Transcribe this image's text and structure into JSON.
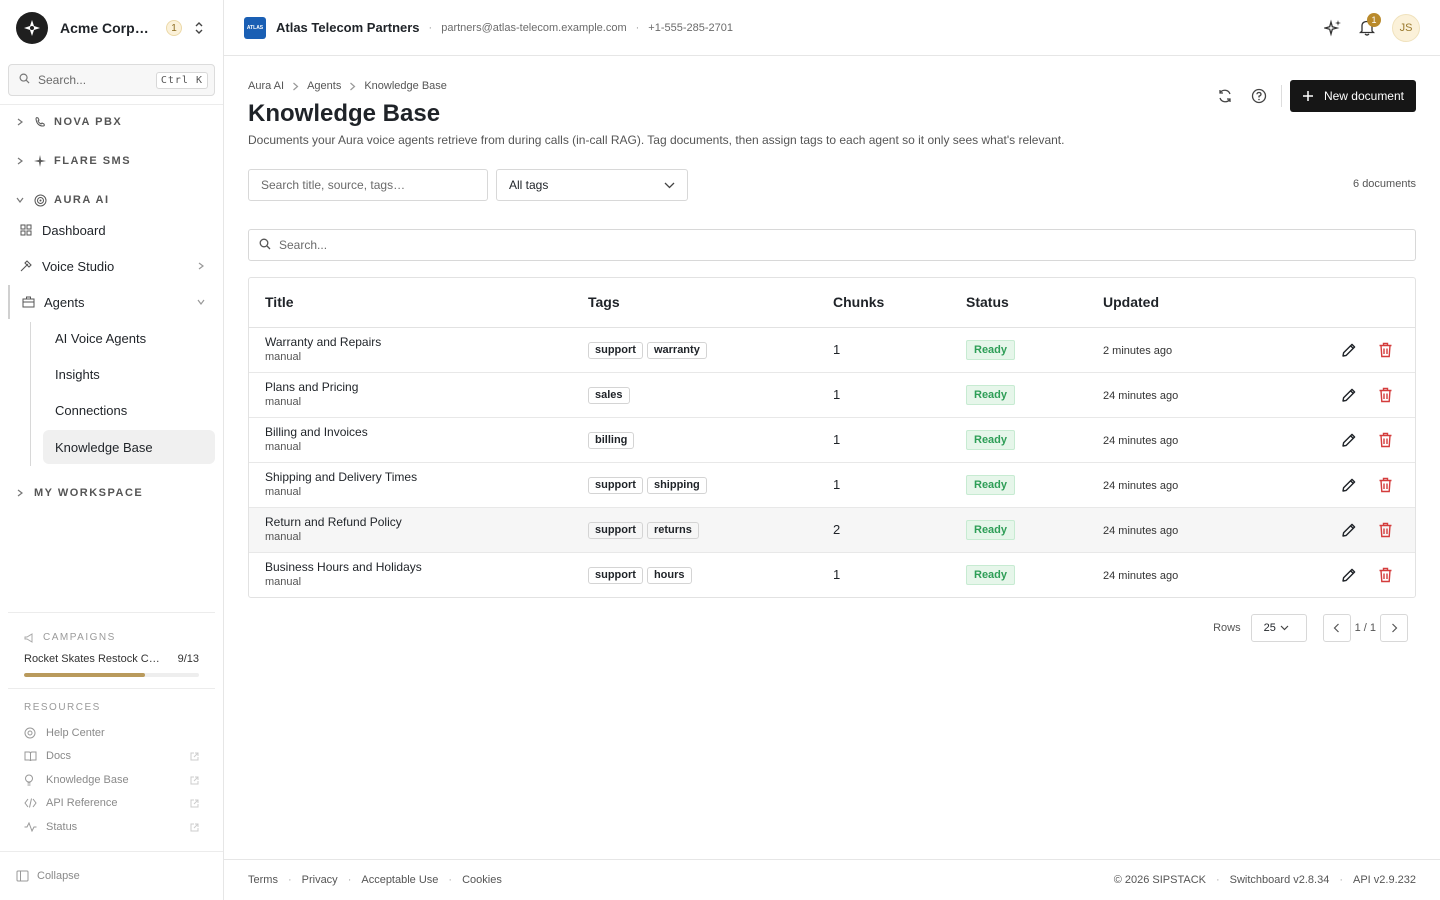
{
  "sidebar": {
    "org_name": "Acme Corporation",
    "org_badge": "1",
    "search_placeholder": "Search...",
    "search_shortcut": "Ctrl K",
    "groups": {
      "nova": "NOVA PBX",
      "flare": "FLARE SMS",
      "aura": "AURA AI",
      "workspace": "MY WORKSPACE"
    },
    "nav": {
      "dashboard": "Dashboard",
      "voice_studio": "Voice Studio",
      "agents": "Agents"
    },
    "subnav": [
      "AI Voice Agents",
      "Insights",
      "Connections",
      "Knowledge Base"
    ],
    "campaigns_label": "CAMPAIGNS",
    "campaign": {
      "name": "Rocket Skates Restock Campaign",
      "count": "9/13",
      "progress": 0.69
    },
    "resources_label": "RESOURCES",
    "resources": [
      "Help Center",
      "Docs",
      "Knowledge Base",
      "API Reference",
      "Status"
    ],
    "collapse": "Collapse"
  },
  "topbar": {
    "company": "Atlas Telecom Partners",
    "logo_text": "ATLAS",
    "email": "partners@atlas-telecom.example.com",
    "phone": "+1-555-285-2701",
    "notif_count": "1",
    "avatar": "JS"
  },
  "page": {
    "breadcrumb": [
      "Aura AI",
      "Agents",
      "Knowledge Base"
    ],
    "title": "Knowledge Base",
    "description": "Documents your Aura voice agents retrieve from during calls (in-call RAG). Tag documents, then assign tags to each agent so it only sees what's relevant.",
    "new_button": "New document",
    "filter_placeholder": "Search title, source, tags…",
    "tag_filter": "All tags",
    "doc_count": "6 documents",
    "table_search_placeholder": "Search..."
  },
  "table": {
    "headers": [
      "Title",
      "Tags",
      "Chunks",
      "Status",
      "Updated"
    ],
    "rows": [
      {
        "title": "Warranty and Repairs",
        "source": "manual",
        "tags": [
          "support",
          "warranty"
        ],
        "chunks": "1",
        "status": "Ready",
        "updated": "2 minutes ago"
      },
      {
        "title": "Plans and Pricing",
        "source": "manual",
        "tags": [
          "sales"
        ],
        "chunks": "1",
        "status": "Ready",
        "updated": "24 minutes ago"
      },
      {
        "title": "Billing and Invoices",
        "source": "manual",
        "tags": [
          "billing"
        ],
        "chunks": "1",
        "status": "Ready",
        "updated": "24 minutes ago"
      },
      {
        "title": "Shipping and Delivery Times",
        "source": "manual",
        "tags": [
          "support",
          "shipping"
        ],
        "chunks": "1",
        "status": "Ready",
        "updated": "24 minutes ago"
      },
      {
        "title": "Return and Refund Policy",
        "source": "manual",
        "tags": [
          "support",
          "returns"
        ],
        "chunks": "2",
        "status": "Ready",
        "updated": "24 minutes ago"
      },
      {
        "title": "Business Hours and Holidays",
        "source": "manual",
        "tags": [
          "support",
          "hours"
        ],
        "chunks": "1",
        "status": "Ready",
        "updated": "24 minutes ago"
      }
    ]
  },
  "pager": {
    "rows_label": "Rows",
    "rows_value": "25",
    "page": "1 / 1"
  },
  "footer": {
    "links": [
      "Terms",
      "Privacy",
      "Acceptable Use",
      "Cookies"
    ],
    "copyright": "© 2026 SIPSTACK",
    "switchboard": "Switchboard v2.8.34",
    "api": "API v2.9.232"
  },
  "colors": {
    "accent": "#161616",
    "ready": "#2e9e57",
    "danger": "#d43c3c",
    "gold": "#b99a5c"
  }
}
